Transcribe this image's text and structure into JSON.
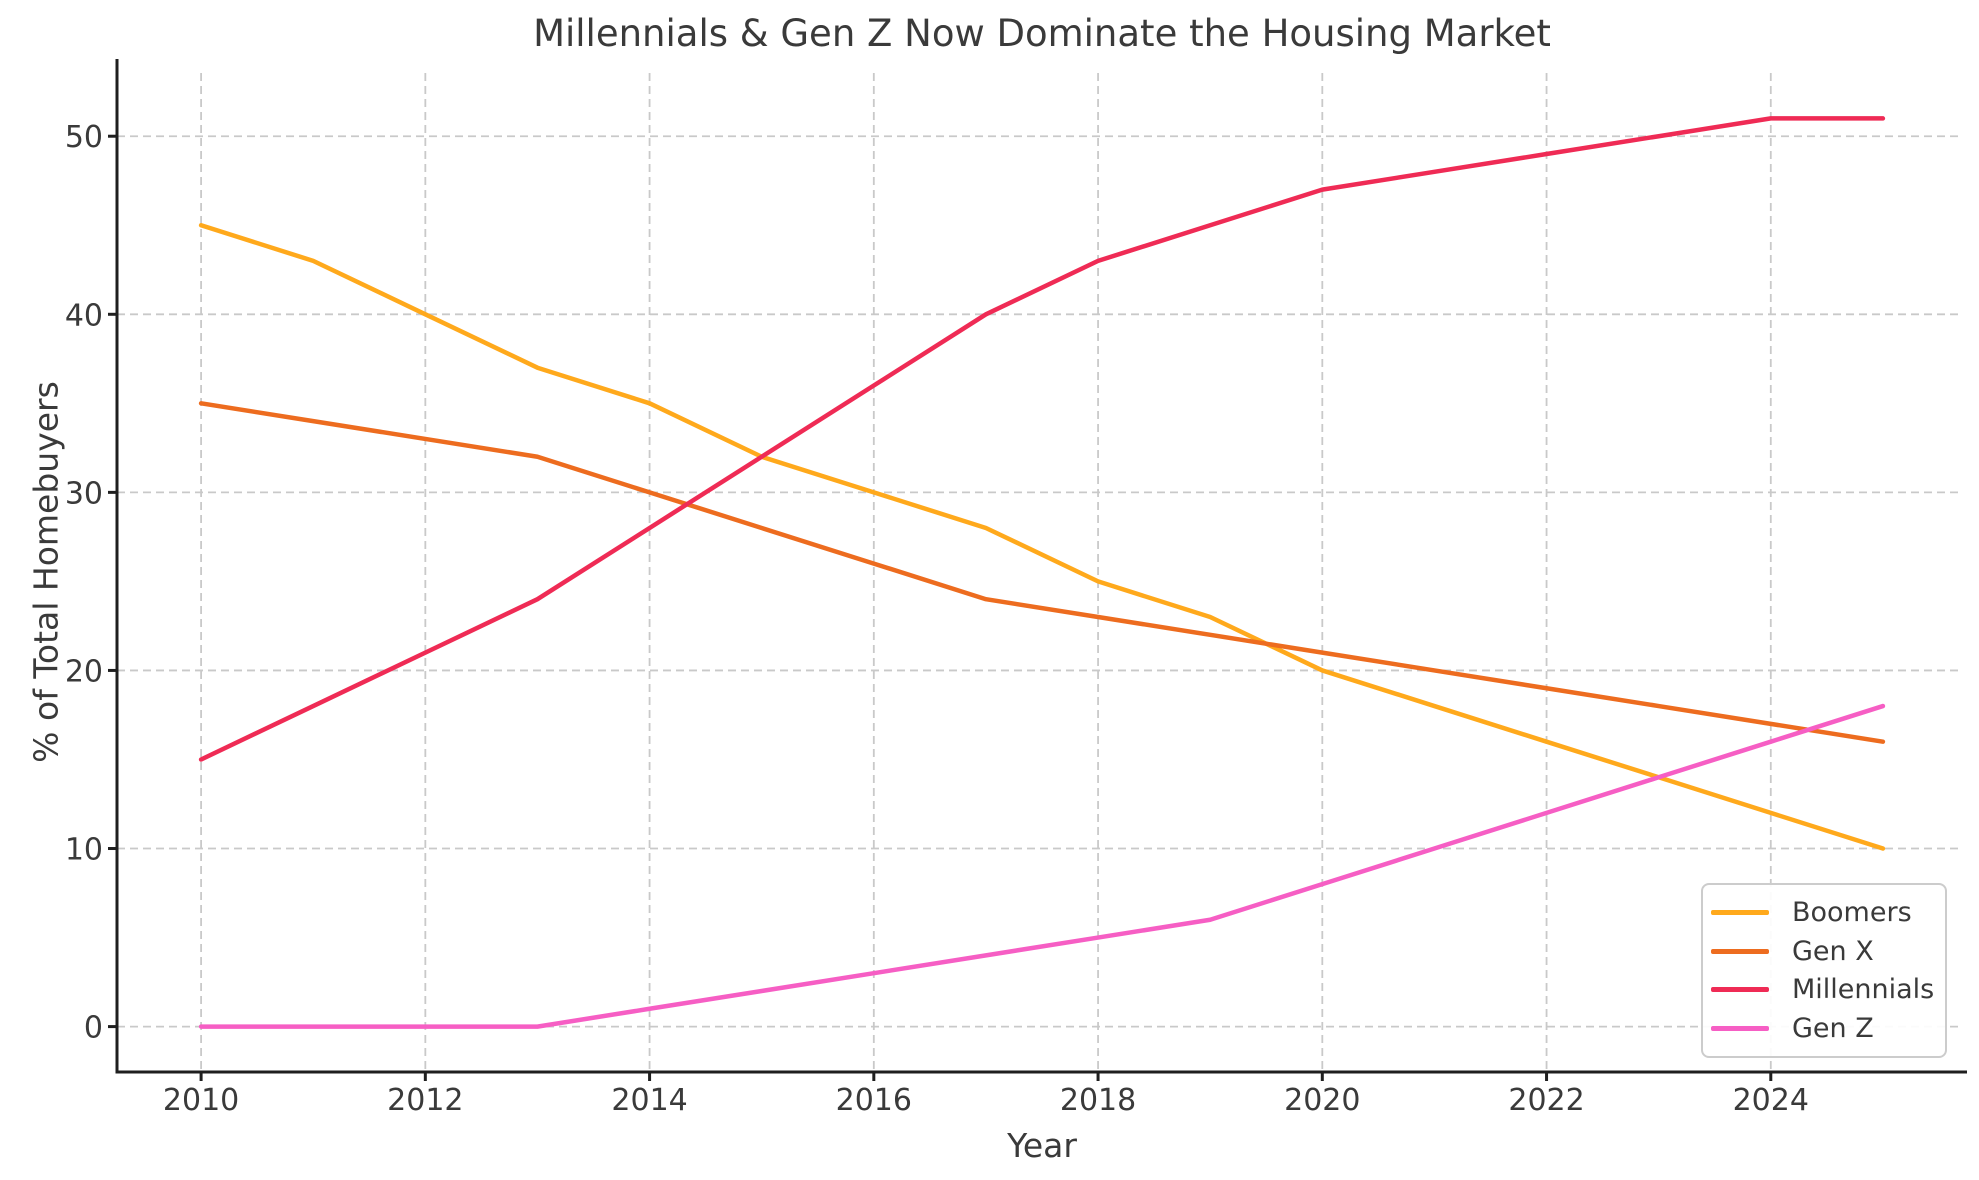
{
  "title": "Millennials & Gen Z Now Dominate the Housing Market",
  "chart_data": {
    "type": "line",
    "title": "Millennials & Gen Z Now Dominate the Housing Market",
    "xlabel": "Year",
    "ylabel": "% of Total Homebuyers",
    "x": [
      2010,
      2011,
      2012,
      2013,
      2014,
      2015,
      2016,
      2017,
      2018,
      2019,
      2020,
      2021,
      2022,
      2023,
      2024,
      2025
    ],
    "series": [
      {
        "name": "Boomers",
        "color": "#FFA91C",
        "values": [
          45,
          43,
          40,
          37,
          35,
          32,
          30,
          28,
          25,
          23,
          20,
          18,
          16,
          14,
          12,
          10
        ]
      },
      {
        "name": "Gen X",
        "color": "#ED6C1F",
        "values": [
          35,
          34,
          33,
          32,
          30,
          28,
          26,
          24,
          23,
          22,
          21,
          20,
          19,
          18,
          17,
          16
        ]
      },
      {
        "name": "Millennials",
        "color": "#EF2B55",
        "values": [
          15,
          18,
          21,
          24,
          28,
          32,
          36,
          40,
          43,
          45,
          47,
          48,
          49,
          50,
          51,
          51
        ]
      },
      {
        "name": "Gen Z",
        "color": "#F65EC4",
        "values": [
          0,
          0,
          0,
          0,
          1,
          2,
          3,
          4,
          5,
          6,
          8,
          10,
          12,
          14,
          16,
          18
        ]
      }
    ],
    "xticks": [
      2010,
      2012,
      2014,
      2016,
      2018,
      2020,
      2022,
      2024
    ],
    "yticks": [
      0,
      10,
      20,
      30,
      40,
      50
    ],
    "xlim": [
      2009.25,
      2025.75
    ],
    "ylim": [
      -2.55,
      53.55
    ],
    "grid": true,
    "legend_position": "lower right",
    "style": {
      "grid_color": "#C9C9C9",
      "spine_color": "#1f1f1f",
      "tick_label_color": "#3a3a3a",
      "background": "#ffffff"
    }
  }
}
